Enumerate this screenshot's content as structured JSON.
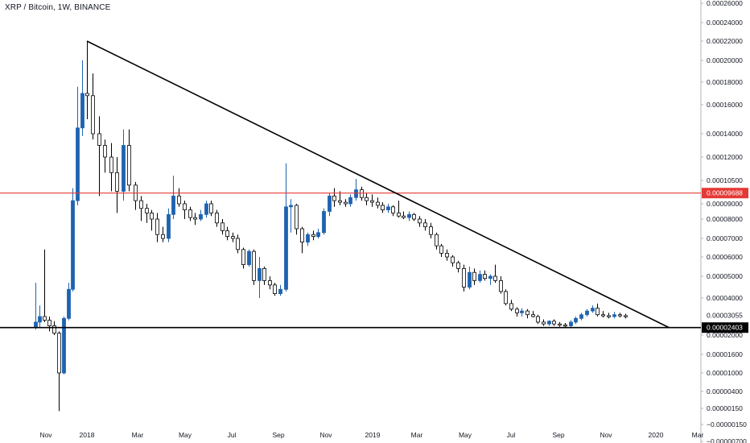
{
  "header": {
    "title": "XRP / Bitcoin, 1W, BINANCE"
  },
  "colors": {
    "bull": "#1e63b0",
    "bear": "#ffffff",
    "candle_outline": "#000000",
    "wick": "#000000",
    "resistance": "#e53935",
    "support": "#000000",
    "trendline": "#000000"
  },
  "chart_data": {
    "type": "candlestick",
    "symbol": "XRP / Bitcoin",
    "interval": "1W",
    "exchange": "BINANCE",
    "x_axis": {
      "date_start": "2017-10-16",
      "date_end": "2020-03-01",
      "tick_labels": [
        {
          "label": "Nov",
          "date": "2017-11-01"
        },
        {
          "label": "2018",
          "date": "2018-01-01"
        },
        {
          "label": "Mar",
          "date": "2018-03-01"
        },
        {
          "label": "May",
          "date": "2018-05-01"
        },
        {
          "label": "Jul",
          "date": "2018-07-01"
        },
        {
          "label": "Sep",
          "date": "2018-09-01"
        },
        {
          "label": "Nov",
          "date": "2018-11-01"
        },
        {
          "label": "2019",
          "date": "2019-01-01"
        },
        {
          "label": "Mar",
          "date": "2019-03-01"
        },
        {
          "label": "May",
          "date": "2019-05-01"
        },
        {
          "label": "Jul",
          "date": "2019-07-01"
        },
        {
          "label": "Sep",
          "date": "2019-09-01"
        },
        {
          "label": "Nov",
          "date": "2019-11-01"
        },
        {
          "label": "2020",
          "date": "2020-01-01"
        },
        {
          "label": "Mar",
          "date": "2020-03-01"
        }
      ]
    },
    "y_axis": {
      "position": "right",
      "scale": "nonlinear",
      "tick_labels": [
        {
          "label": "0.00026000",
          "value": 0.00026
        },
        {
          "label": "0.00024000",
          "value": 0.00024
        },
        {
          "label": "0.00022000",
          "value": 0.00022
        },
        {
          "label": "0.00020000",
          "value": 0.0002
        },
        {
          "label": "0.00018000",
          "value": 0.00018
        },
        {
          "label": "0.00016000",
          "value": 0.00016
        },
        {
          "label": "0.00014000",
          "value": 0.00014
        },
        {
          "label": "0.00012000",
          "value": 0.00012
        },
        {
          "label": "0.00010500",
          "value": 0.000105
        },
        {
          "label": "0.00009000",
          "value": 9e-05
        },
        {
          "label": "0.00008000",
          "value": 8e-05
        },
        {
          "label": "0.00007000",
          "value": 7e-05
        },
        {
          "label": "0.00006000",
          "value": 6e-05
        },
        {
          "label": "0.00005000",
          "value": 5e-05
        },
        {
          "label": "0.00004000",
          "value": 4e-05
        },
        {
          "label": "0.00002000",
          "value": 2e-05
        },
        {
          "label": "0.00001600",
          "value": 1.6e-05
        },
        {
          "label": "0.00001000",
          "value": 1e-05
        },
        {
          "label": "0.00000400",
          "value": 4e-06
        },
        {
          "label": "0.00000150",
          "value": 1.5e-06
        },
        {
          "label": "−0.00000150",
          "value": -1.5e-06
        },
        {
          "label": "−0.00000700",
          "value": -7e-06
        }
      ]
    },
    "price_markers": [
      {
        "label": "0.00009688",
        "value": 9.688e-05,
        "color": "#e53935",
        "text_color": "#ffffff"
      },
      {
        "label": "0.00002403",
        "value": 2.403e-05,
        "color": "#000000",
        "text_color": "#ffffff"
      },
      {
        "label": "0.00003055",
        "value": 3.055e-05,
        "color": "none",
        "text_color": "#131722"
      }
    ],
    "horizontal_lines": [
      {
        "name": "resistance",
        "value": 9.688e-05,
        "color": "#e53935"
      },
      {
        "name": "support",
        "value": 2.403e-05,
        "color": "#000000"
      }
    ],
    "trendline": {
      "start": {
        "date": "2018-01-01",
        "value": 0.00022
      },
      "end": {
        "date": "2020-01-20",
        "value": 2.403e-05
      }
    },
    "candles": [
      {
        "date": "2017-10-16",
        "o": 2.4e-05,
        "h": 4.7e-05,
        "l": 2.3e-05,
        "c": 2.7e-05
      },
      {
        "date": "2017-10-23",
        "o": 2.7e-05,
        "h": 3.6e-05,
        "l": 2.4e-05,
        "c": 3e-05
      },
      {
        "date": "2017-10-30",
        "o": 3e-05,
        "h": 6.4e-05,
        "l": 2.7e-05,
        "c": 2.8e-05
      },
      {
        "date": "2017-11-06",
        "o": 2.8e-05,
        "h": 3e-05,
        "l": 2.2e-05,
        "c": 2.5e-05
      },
      {
        "date": "2017-11-13",
        "o": 2.5e-05,
        "h": 2.75e-05,
        "l": 2e-05,
        "c": 2.1e-05
      },
      {
        "date": "2017-11-20",
        "o": 2.1e-05,
        "h": 2.2e-05,
        "l": 1e-06,
        "c": 1e-05
      },
      {
        "date": "2017-11-27",
        "o": 1e-05,
        "h": 3e-05,
        "l": 9.5e-06,
        "c": 2.9e-05
      },
      {
        "date": "2017-12-04",
        "o": 2.9e-05,
        "h": 4.7e-05,
        "l": 2.8e-05,
        "c": 4.4e-05
      },
      {
        "date": "2017-12-11",
        "o": 4.4e-05,
        "h": 0.0001,
        "l": 4.3e-05,
        "c": 9.2e-05
      },
      {
        "date": "2017-12-18",
        "o": 9.2e-05,
        "h": 0.000176,
        "l": 8.9e-05,
        "c": 0.000144
      },
      {
        "date": "2017-12-25",
        "o": 0.000144,
        "h": 0.0002,
        "l": 0.000138,
        "c": 0.00017
      },
      {
        "date": "2018-01-01",
        "o": 0.00017,
        "h": 0.00022,
        "l": 0.00015,
        "c": 0.000168
      },
      {
        "date": "2018-01-08",
        "o": 0.000168,
        "h": 0.000188,
        "l": 0.000135,
        "c": 0.00014
      },
      {
        "date": "2018-01-15",
        "o": 0.00014,
        "h": 0.000152,
        "l": 9.5e-05,
        "c": 0.00013
      },
      {
        "date": "2018-01-22",
        "o": 0.00013,
        "h": 0.000135,
        "l": 0.00011,
        "c": 0.00012
      },
      {
        "date": "2018-01-29",
        "o": 0.00012,
        "h": 0.000132,
        "l": 9.8e-05,
        "c": 0.00011
      },
      {
        "date": "2018-02-05",
        "o": 0.00011,
        "h": 0.00012,
        "l": 8.4e-05,
        "c": 9.8e-05
      },
      {
        "date": "2018-02-12",
        "o": 9.8e-05,
        "h": 0.000143,
        "l": 9.2e-05,
        "c": 0.00013
      },
      {
        "date": "2018-02-19",
        "o": 0.00013,
        "h": 0.000143,
        "l": 9.8e-05,
        "c": 0.000102
      },
      {
        "date": "2018-02-26",
        "o": 0.000102,
        "h": 0.000104,
        "l": 8.6e-05,
        "c": 9.2e-05
      },
      {
        "date": "2018-03-05",
        "o": 9.2e-05,
        "h": 9.5e-05,
        "l": 7.9e-05,
        "c": 8.7e-05
      },
      {
        "date": "2018-03-12",
        "o": 8.7e-05,
        "h": 9e-05,
        "l": 7.8e-05,
        "c": 8.4e-05
      },
      {
        "date": "2018-03-19",
        "o": 8.4e-05,
        "h": 8.6e-05,
        "l": 7.4e-05,
        "c": 8e-05
      },
      {
        "date": "2018-03-26",
        "o": 8e-05,
        "h": 8.4e-05,
        "l": 6.8e-05,
        "c": 7.2e-05
      },
      {
        "date": "2018-04-02",
        "o": 7.2e-05,
        "h": 7.6e-05,
        "l": 6.8e-05,
        "c": 7e-05
      },
      {
        "date": "2018-04-09",
        "o": 7e-05,
        "h": 8.7e-05,
        "l": 6.8e-05,
        "c": 8.3e-05
      },
      {
        "date": "2018-04-16",
        "o": 8.3e-05,
        "h": 0.000108,
        "l": 8e-05,
        "c": 9.5e-05
      },
      {
        "date": "2018-04-23",
        "o": 9.5e-05,
        "h": 0.0001,
        "l": 8.8e-05,
        "c": 9e-05
      },
      {
        "date": "2018-04-30",
        "o": 9e-05,
        "h": 9.2e-05,
        "l": 8e-05,
        "c": 8.6e-05
      },
      {
        "date": "2018-05-07",
        "o": 8.6e-05,
        "h": 8.8e-05,
        "l": 7.9e-05,
        "c": 8.1e-05
      },
      {
        "date": "2018-05-14",
        "o": 8.1e-05,
        "h": 8.4e-05,
        "l": 7.7e-05,
        "c": 8e-05
      },
      {
        "date": "2018-05-21",
        "o": 8e-05,
        "h": 8.6e-05,
        "l": 7.9e-05,
        "c": 8.3e-05
      },
      {
        "date": "2018-05-28",
        "o": 8.3e-05,
        "h": 9.2e-05,
        "l": 8.1e-05,
        "c": 9e-05
      },
      {
        "date": "2018-06-04",
        "o": 9e-05,
        "h": 9.2e-05,
        "l": 8.2e-05,
        "c": 8.4e-05
      },
      {
        "date": "2018-06-11",
        "o": 8.4e-05,
        "h": 8.6e-05,
        "l": 7.6e-05,
        "c": 7.8e-05
      },
      {
        "date": "2018-06-18",
        "o": 7.8e-05,
        "h": 8e-05,
        "l": 7.2e-05,
        "c": 7.4e-05
      },
      {
        "date": "2018-06-25",
        "o": 7.4e-05,
        "h": 7.6e-05,
        "l": 6.9e-05,
        "c": 7.1e-05
      },
      {
        "date": "2018-07-02",
        "o": 7.1e-05,
        "h": 7.3e-05,
        "l": 6.8e-05,
        "c": 7e-05
      },
      {
        "date": "2018-07-09",
        "o": 7e-05,
        "h": 7.2e-05,
        "l": 6.2e-05,
        "c": 6.4e-05
      },
      {
        "date": "2018-07-16",
        "o": 6.4e-05,
        "h": 6.5e-05,
        "l": 5.4e-05,
        "c": 5.6e-05
      },
      {
        "date": "2018-07-23",
        "o": 5.6e-05,
        "h": 6.4e-05,
        "l": 5.5e-05,
        "c": 6.3e-05
      },
      {
        "date": "2018-07-30",
        "o": 6.3e-05,
        "h": 6.4e-05,
        "l": 4.6e-05,
        "c": 4.8e-05
      },
      {
        "date": "2018-08-06",
        "o": 4.8e-05,
        "h": 6e-05,
        "l": 4e-05,
        "c": 5.4e-05
      },
      {
        "date": "2018-08-13",
        "o": 5.4e-05,
        "h": 5.5e-05,
        "l": 4.6e-05,
        "c": 4.8e-05
      },
      {
        "date": "2018-08-20",
        "o": 4.8e-05,
        "h": 5e-05,
        "l": 4.4e-05,
        "c": 4.6e-05
      },
      {
        "date": "2018-08-27",
        "o": 4.6e-05,
        "h": 4.7e-05,
        "l": 4.1e-05,
        "c": 4.2e-05
      },
      {
        "date": "2018-09-03",
        "o": 4.2e-05,
        "h": 4.6e-05,
        "l": 4.1e-05,
        "c": 4.4e-05
      },
      {
        "date": "2018-09-10",
        "o": 4.4e-05,
        "h": 0.000116,
        "l": 4.3e-05,
        "c": 8.8e-05
      },
      {
        "date": "2018-09-17",
        "o": 8.8e-05,
        "h": 9.3e-05,
        "l": 7.3e-05,
        "c": 8.9e-05
      },
      {
        "date": "2018-09-24",
        "o": 8.9e-05,
        "h": 9e-05,
        "l": 7.2e-05,
        "c": 7.5e-05
      },
      {
        "date": "2018-10-01",
        "o": 7.5e-05,
        "h": 7.6e-05,
        "l": 6.2e-05,
        "c": 6.8e-05
      },
      {
        "date": "2018-10-08",
        "o": 6.8e-05,
        "h": 7.3e-05,
        "l": 6.6e-05,
        "c": 7.2e-05
      },
      {
        "date": "2018-10-15",
        "o": 7.2e-05,
        "h": 7.4e-05,
        "l": 6.9e-05,
        "c": 7.1e-05
      },
      {
        "date": "2018-10-22",
        "o": 7.1e-05,
        "h": 7.5e-05,
        "l": 7e-05,
        "c": 7.3e-05
      },
      {
        "date": "2018-10-29",
        "o": 7.3e-05,
        "h": 8.7e-05,
        "l": 7.2e-05,
        "c": 8.5e-05
      },
      {
        "date": "2018-11-05",
        "o": 8.5e-05,
        "h": 9.7e-05,
        "l": 8.2e-05,
        "c": 9.5e-05
      },
      {
        "date": "2018-11-12",
        "o": 9.5e-05,
        "h": 0.0001,
        "l": 8.8e-05,
        "c": 9.2e-05
      },
      {
        "date": "2018-11-19",
        "o": 9.2e-05,
        "h": 9.8e-05,
        "l": 8.9e-05,
        "c": 9.1e-05
      },
      {
        "date": "2018-11-26",
        "o": 9.1e-05,
        "h": 9.3e-05,
        "l": 8.8e-05,
        "c": 9e-05
      },
      {
        "date": "2018-12-03",
        "o": 9e-05,
        "h": 9.6e-05,
        "l": 8.8e-05,
        "c": 9.4e-05
      },
      {
        "date": "2018-12-10",
        "o": 9.4e-05,
        "h": 0.000106,
        "l": 9.2e-05,
        "c": 9.9e-05
      },
      {
        "date": "2018-12-17",
        "o": 9.9e-05,
        "h": 0.000101,
        "l": 9.2e-05,
        "c": 9.4e-05
      },
      {
        "date": "2018-12-24",
        "o": 9.4e-05,
        "h": 9.7e-05,
        "l": 8.9e-05,
        "c": 9.2e-05
      },
      {
        "date": "2018-12-31",
        "o": 9.2e-05,
        "h": 9.6e-05,
        "l": 8.8e-05,
        "c": 9.1e-05
      },
      {
        "date": "2019-01-07",
        "o": 9.1e-05,
        "h": 9.4e-05,
        "l": 8.7e-05,
        "c": 8.9e-05
      },
      {
        "date": "2019-01-14",
        "o": 8.9e-05,
        "h": 9.1e-05,
        "l": 8.4e-05,
        "c": 8.6e-05
      },
      {
        "date": "2019-01-21",
        "o": 8.6e-05,
        "h": 9e-05,
        "l": 8.4e-05,
        "c": 8.8e-05
      },
      {
        "date": "2019-01-28",
        "o": 8.8e-05,
        "h": 8.9e-05,
        "l": 8.2e-05,
        "c": 8.4e-05
      },
      {
        "date": "2019-02-04",
        "o": 8.4e-05,
        "h": 9.2e-05,
        "l": 8.1e-05,
        "c": 8.2e-05
      },
      {
        "date": "2019-02-11",
        "o": 8.2e-05,
        "h": 8.5e-05,
        "l": 8e-05,
        "c": 8.1e-05
      },
      {
        "date": "2019-02-18",
        "o": 8.1e-05,
        "h": 8.5e-05,
        "l": 7.9e-05,
        "c": 8.3e-05
      },
      {
        "date": "2019-02-25",
        "o": 8.3e-05,
        "h": 8.4e-05,
        "l": 7.9e-05,
        "c": 8e-05
      },
      {
        "date": "2019-03-04",
        "o": 8e-05,
        "h": 8.2e-05,
        "l": 7.6e-05,
        "c": 7.8e-05
      },
      {
        "date": "2019-03-11",
        "o": 7.8e-05,
        "h": 8e-05,
        "l": 7.4e-05,
        "c": 7.6e-05
      },
      {
        "date": "2019-03-18",
        "o": 7.6e-05,
        "h": 7.8e-05,
        "l": 7e-05,
        "c": 7.2e-05
      },
      {
        "date": "2019-03-25",
        "o": 7.2e-05,
        "h": 7.3e-05,
        "l": 6.4e-05,
        "c": 6.6e-05
      },
      {
        "date": "2019-04-01",
        "o": 6.6e-05,
        "h": 6.7e-05,
        "l": 6e-05,
        "c": 6.2e-05
      },
      {
        "date": "2019-04-08",
        "o": 6.2e-05,
        "h": 6.4e-05,
        "l": 5.8e-05,
        "c": 6e-05
      },
      {
        "date": "2019-04-15",
        "o": 6e-05,
        "h": 6.1e-05,
        "l": 5.5e-05,
        "c": 5.7e-05
      },
      {
        "date": "2019-04-22",
        "o": 5.7e-05,
        "h": 5.8e-05,
        "l": 5.2e-05,
        "c": 5.4e-05
      },
      {
        "date": "2019-04-29",
        "o": 5.4e-05,
        "h": 5.6e-05,
        "l": 4.3e-05,
        "c": 4.5e-05
      },
      {
        "date": "2019-05-06",
        "o": 4.5e-05,
        "h": 5.5e-05,
        "l": 4.4e-05,
        "c": 5.2e-05
      },
      {
        "date": "2019-05-13",
        "o": 5.2e-05,
        "h": 5.4e-05,
        "l": 4.6e-05,
        "c": 4.8e-05
      },
      {
        "date": "2019-05-20",
        "o": 4.8e-05,
        "h": 5.3e-05,
        "l": 4.7e-05,
        "c": 5.1e-05
      },
      {
        "date": "2019-05-27",
        "o": 5.1e-05,
        "h": 5.3e-05,
        "l": 4.8e-05,
        "c": 4.9e-05
      },
      {
        "date": "2019-06-03",
        "o": 4.9e-05,
        "h": 5.1e-05,
        "l": 4.6e-05,
        "c": 5e-05
      },
      {
        "date": "2019-06-10",
        "o": 5e-05,
        "h": 5.6e-05,
        "l": 4.7e-05,
        "c": 4.8e-05
      },
      {
        "date": "2019-06-17",
        "o": 4.8e-05,
        "h": 5e-05,
        "l": 4.2e-05,
        "c": 4.3e-05
      },
      {
        "date": "2019-06-24",
        "o": 4.3e-05,
        "h": 4.4e-05,
        "l": 3.6e-05,
        "c": 3.7e-05
      },
      {
        "date": "2019-07-01",
        "o": 3.7e-05,
        "h": 3.9e-05,
        "l": 3.3e-05,
        "c": 3.4e-05
      },
      {
        "date": "2019-07-08",
        "o": 3.4e-05,
        "h": 3.5e-05,
        "l": 3e-05,
        "c": 3.2e-05
      },
      {
        "date": "2019-07-15",
        "o": 3.2e-05,
        "h": 3.45e-05,
        "l": 3e-05,
        "c": 3.3e-05
      },
      {
        "date": "2019-07-22",
        "o": 3.3e-05,
        "h": 3.4e-05,
        "l": 2.9e-05,
        "c": 3.1e-05
      },
      {
        "date": "2019-07-29",
        "o": 3.1e-05,
        "h": 3.3e-05,
        "l": 2.95e-05,
        "c": 3e-05
      },
      {
        "date": "2019-08-05",
        "o": 3e-05,
        "h": 3.1e-05,
        "l": 2.6e-05,
        "c": 2.7e-05
      },
      {
        "date": "2019-08-12",
        "o": 2.7e-05,
        "h": 2.85e-05,
        "l": 2.5e-05,
        "c": 2.6e-05
      },
      {
        "date": "2019-08-19",
        "o": 2.6e-05,
        "h": 2.8e-05,
        "l": 2.5e-05,
        "c": 2.75e-05
      },
      {
        "date": "2019-08-26",
        "o": 2.75e-05,
        "h": 2.85e-05,
        "l": 2.5e-05,
        "c": 2.6e-05
      },
      {
        "date": "2019-09-02",
        "o": 2.6e-05,
        "h": 2.7e-05,
        "l": 2.45e-05,
        "c": 2.55e-05
      },
      {
        "date": "2019-09-09",
        "o": 2.55e-05,
        "h": 2.65e-05,
        "l": 2.4e-05,
        "c": 2.5e-05
      },
      {
        "date": "2019-09-16",
        "o": 2.5e-05,
        "h": 2.8e-05,
        "l": 2.4e-05,
        "c": 2.7e-05
      },
      {
        "date": "2019-09-23",
        "o": 2.7e-05,
        "h": 3e-05,
        "l": 2.6e-05,
        "c": 2.9e-05
      },
      {
        "date": "2019-09-30",
        "o": 2.9e-05,
        "h": 3.2e-05,
        "l": 2.8e-05,
        "c": 3.1e-05
      },
      {
        "date": "2019-10-07",
        "o": 3.1e-05,
        "h": 3.4e-05,
        "l": 3e-05,
        "c": 3.3e-05
      },
      {
        "date": "2019-10-14",
        "o": 3.3e-05,
        "h": 3.6e-05,
        "l": 3.2e-05,
        "c": 3.45e-05
      },
      {
        "date": "2019-10-21",
        "o": 3.45e-05,
        "h": 3.7e-05,
        "l": 3e-05,
        "c": 3.1e-05
      },
      {
        "date": "2019-10-28",
        "o": 3.1e-05,
        "h": 3.3e-05,
        "l": 2.95e-05,
        "c": 3.05e-05
      },
      {
        "date": "2019-11-04",
        "o": 3.05e-05,
        "h": 3.2e-05,
        "l": 2.9e-05,
        "c": 3e-05
      },
      {
        "date": "2019-11-11",
        "o": 3e-05,
        "h": 3.25e-05,
        "l": 2.9e-05,
        "c": 3.1e-05
      },
      {
        "date": "2019-11-18",
        "o": 3.1e-05,
        "h": 3.2e-05,
        "l": 2.95e-05,
        "c": 3.05e-05
      },
      {
        "date": "2019-11-25",
        "o": 3.05e-05,
        "h": 3.15e-05,
        "l": 2.9e-05,
        "c": 3e-05
      }
    ]
  }
}
